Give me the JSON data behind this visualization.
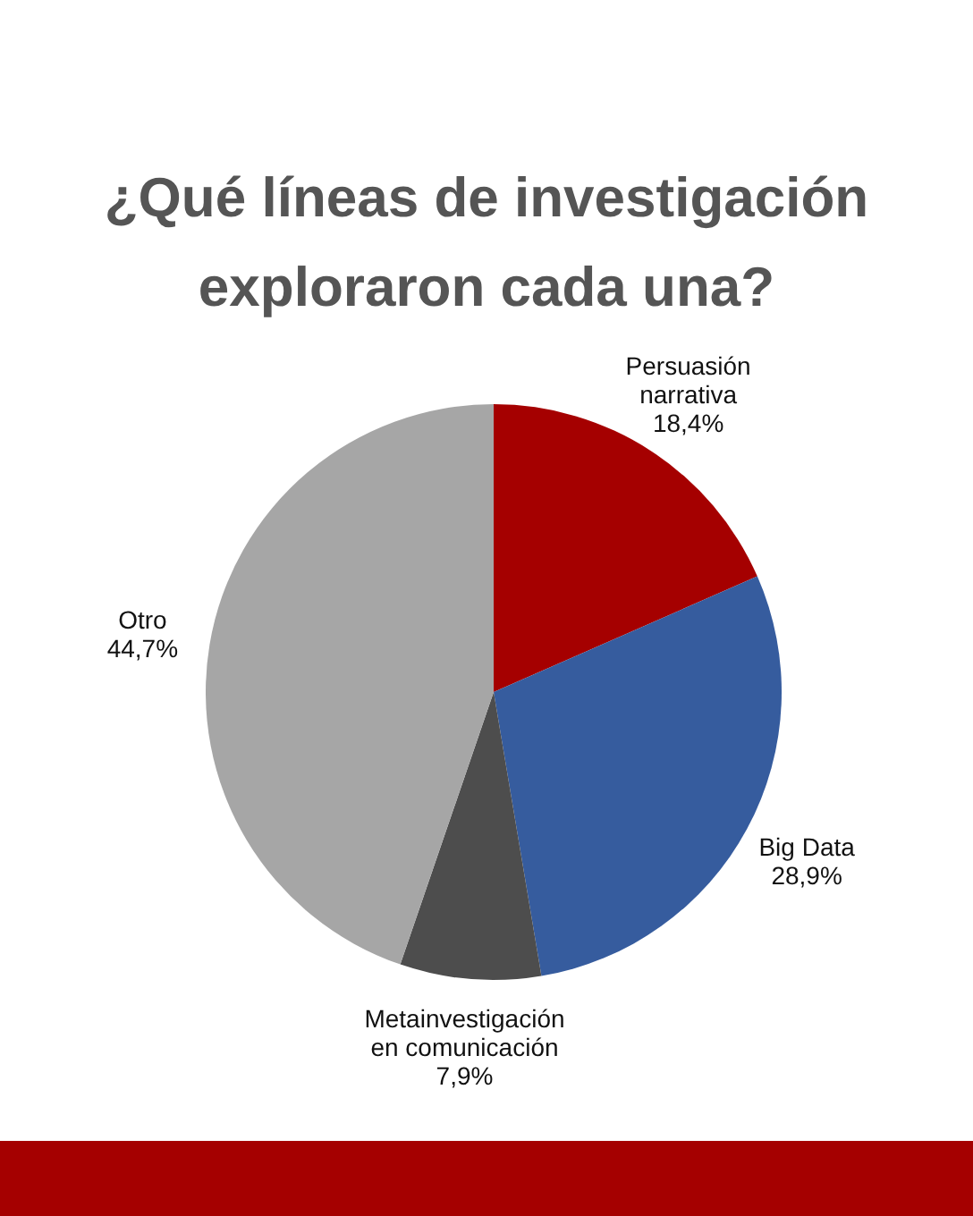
{
  "chart_data": {
    "type": "pie",
    "title": "¿Qué líneas de investigación exploraron cada una?",
    "categories": [
      "Persuasión narrativa",
      "Big Data",
      "Metainvestigación en comunicación",
      "Otro"
    ],
    "values": [
      18.4,
      28.9,
      7.9,
      44.7
    ],
    "value_labels": [
      "18,4%",
      "28,9%",
      "7,9%",
      "44,7%"
    ],
    "colors": [
      "#a50000",
      "#365c9e",
      "#4d4d4d",
      "#a6a6a6"
    ]
  }
}
